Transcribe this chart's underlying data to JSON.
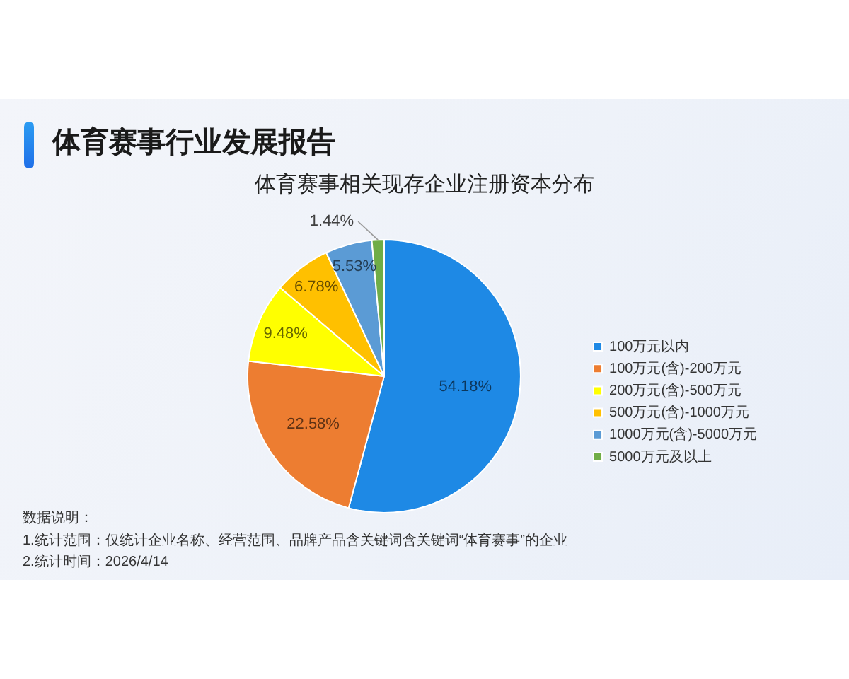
{
  "chart_data": {
    "type": "pie",
    "title": "体育赛事行业发展报告",
    "subtitle": "体育赛事相关现存企业注册资本分布",
    "categories": [
      "100万元以内",
      "100万元(含)-200万元",
      "200万元(含)-500万元",
      "500万元(含)-1000万元",
      "1000万元(含)-5000万元",
      "5000万元及以上"
    ],
    "values": [
      54.18,
      22.58,
      9.48,
      6.78,
      5.53,
      1.44
    ],
    "value_labels": [
      "54.18%",
      "22.58%",
      "9.48%",
      "6.78%",
      "5.53%",
      "1.44%"
    ],
    "colors": [
      "#1e89e5",
      "#ed7d31",
      "#ffff00",
      "#ffc000",
      "#5b9bd5",
      "#70ad47"
    ],
    "legend": "right",
    "annotations": [
      "数据说明：",
      "1.统计范围：仅统计企业名称、经营范围、品牌产品含关键词含关键词“体育赛事”的企业",
      "2.统计时间：2026/4/14"
    ]
  }
}
